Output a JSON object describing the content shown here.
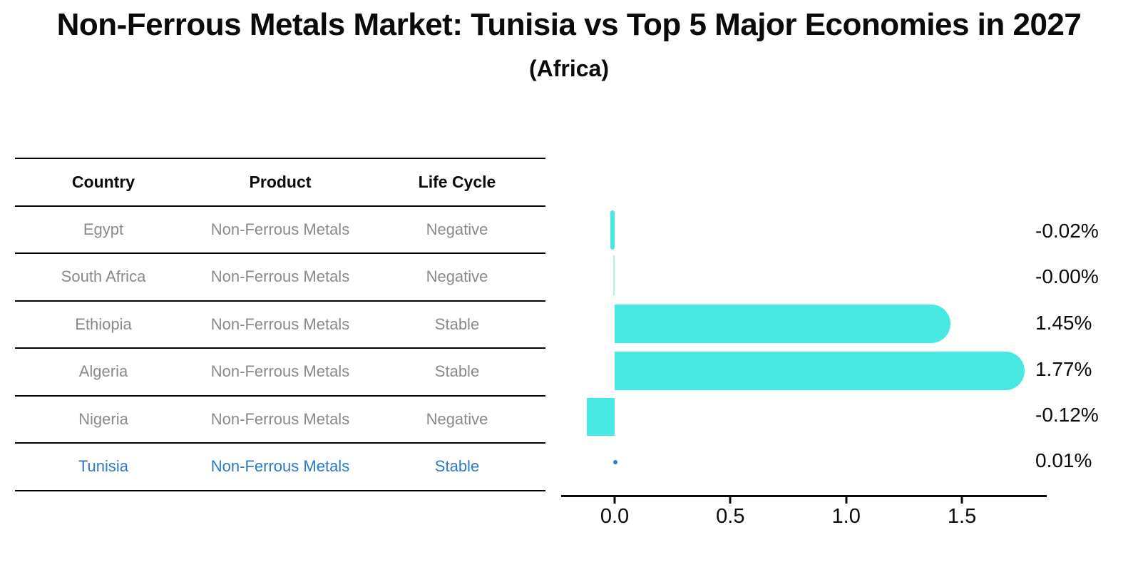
{
  "title": "Non-Ferrous Metals Market: Tunisia vs Top 5 Major Economies in 2027",
  "subtitle": "(Africa)",
  "table": {
    "headers": [
      "Country",
      "Product",
      "Life Cycle"
    ],
    "rows": [
      {
        "country": "Egypt",
        "product": "Non-Ferrous Metals",
        "life_cycle": "Negative"
      },
      {
        "country": "South Africa",
        "product": "Non-Ferrous Metals",
        "life_cycle": "Negative"
      },
      {
        "country": "Ethiopia",
        "product": "Non-Ferrous Metals",
        "life_cycle": "Stable"
      },
      {
        "country": "Algeria",
        "product": "Non-Ferrous Metals",
        "life_cycle": "Stable"
      },
      {
        "country": "Nigeria",
        "product": "Non-Ferrous Metals",
        "life_cycle": "Negative"
      },
      {
        "country": "Tunisia",
        "product": "Non-Ferrous Metals",
        "life_cycle": "Stable"
      }
    ],
    "highlight_row": "Tunisia"
  },
  "chart_data": {
    "type": "bar",
    "orientation": "horizontal",
    "categories": [
      "Egypt",
      "South Africa",
      "Ethiopia",
      "Algeria",
      "Nigeria",
      "Tunisia"
    ],
    "values": [
      -0.02,
      -0.0,
      1.45,
      1.77,
      -0.12,
      0.01
    ],
    "value_labels": [
      "-0.02%",
      "-0.00%",
      "1.45%",
      "1.77%",
      "-0.12%",
      "0.01%"
    ],
    "x_ticks": [
      0.0,
      0.5,
      1.0,
      1.5
    ],
    "x_tick_labels": [
      "0.0",
      "0.5",
      "1.0",
      "1.5"
    ],
    "xlim": [
      -0.23,
      1.87
    ],
    "unit": "%",
    "grid": false,
    "legend": false,
    "colors": {
      "bar": "#48E8E3",
      "highlight": "#2B7CD4",
      "text": "#0a0a0a"
    },
    "highlight_index": 5,
    "title": "Non-Ferrous Metals Market: Tunisia vs Top 5 Major Economies in 2027",
    "subtitle": "(Africa)"
  }
}
